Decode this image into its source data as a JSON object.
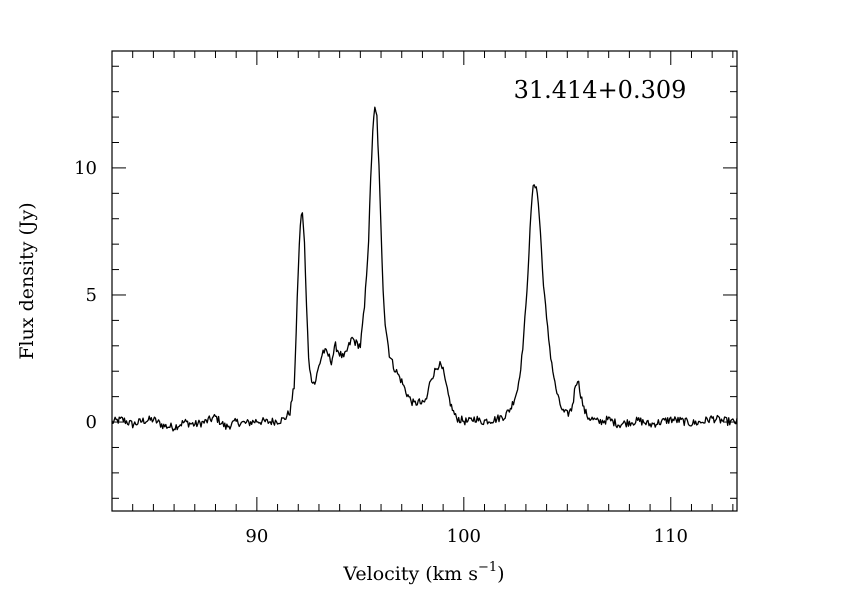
{
  "chart_data": {
    "type": "line",
    "title": "31.414+0.309",
    "xlabel": "Velocity (km s",
    "xlabel_sup": "−1",
    "xlabel_close": ")",
    "ylabel": "Flux density (Jy)",
    "xlim": [
      83.0,
      113.2
    ],
    "ylim": [
      -3.5,
      14.6
    ],
    "grid": false,
    "x_major_ticks": [
      90,
      100,
      110
    ],
    "x_minor_step": 1,
    "y_major_ticks": [
      0,
      5,
      10
    ],
    "y_minor_step": 1,
    "x_tick_labels": [
      "90",
      "100",
      "110"
    ],
    "y_tick_labels": [
      "0",
      "5",
      "10"
    ],
    "series": [
      {
        "color": "#000000",
        "x": [
          83.0,
          83.5,
          84.0,
          84.5,
          85.0,
          85.5,
          86.0,
          86.5,
          87.0,
          87.5,
          88.0,
          88.5,
          89.0,
          89.5,
          90.0,
          90.5,
          91.0,
          91.3,
          91.6,
          91.8,
          91.9,
          92.0,
          92.1,
          92.2,
          92.3,
          92.4,
          92.5,
          92.6,
          92.8,
          93.0,
          93.2,
          93.4,
          93.6,
          93.8,
          94.0,
          94.2,
          94.4,
          94.6,
          94.8,
          95.0,
          95.2,
          95.4,
          95.5,
          95.6,
          95.7,
          95.8,
          95.9,
          96.0,
          96.1,
          96.2,
          96.4,
          96.6,
          96.8,
          97.0,
          97.2,
          97.4,
          97.6,
          97.8,
          98.0,
          98.2,
          98.4,
          98.6,
          98.8,
          99.0,
          99.2,
          99.4,
          99.6,
          99.8,
          100.0,
          100.2,
          100.4,
          100.6,
          100.8,
          101.0,
          101.5,
          102.0,
          102.3,
          102.6,
          102.8,
          103.0,
          103.2,
          103.3,
          103.4,
          103.5,
          103.6,
          103.7,
          103.8,
          104.0,
          104.2,
          104.4,
          104.6,
          104.8,
          105.0,
          105.2,
          105.3,
          105.4,
          105.5,
          105.6,
          105.8,
          106.0,
          106.5,
          107.0,
          107.5,
          108.0,
          108.5,
          109.0,
          109.5,
          110.0,
          110.5,
          111.0,
          111.5,
          112.0,
          112.5,
          113.0
        ],
        "y": [
          0.0,
          0.1,
          -0.1,
          0.05,
          0.1,
          -0.15,
          -0.2,
          0.0,
          -0.1,
          0.0,
          0.2,
          -0.2,
          0.0,
          -0.05,
          0.05,
          0.0,
          0.05,
          0.1,
          0.4,
          1.4,
          3.5,
          6.0,
          7.8,
          8.3,
          7.0,
          4.5,
          2.6,
          1.8,
          1.5,
          2.2,
          2.8,
          2.7,
          2.4,
          3.0,
          2.7,
          2.5,
          2.9,
          3.3,
          3.1,
          3.0,
          4.5,
          7.2,
          9.5,
          11.5,
          12.3,
          12.0,
          10.0,
          7.5,
          5.3,
          3.9,
          2.7,
          2.2,
          1.9,
          1.6,
          1.2,
          0.9,
          0.7,
          0.8,
          0.7,
          0.9,
          1.7,
          2.0,
          2.3,
          2.0,
          1.2,
          0.6,
          0.2,
          0.1,
          0.05,
          0.0,
          0.1,
          0.15,
          0.0,
          0.05,
          0.1,
          0.25,
          0.6,
          1.3,
          2.5,
          4.5,
          7.5,
          8.9,
          9.4,
          9.3,
          8.6,
          7.5,
          6.0,
          4.0,
          2.6,
          1.5,
          0.8,
          0.4,
          0.3,
          0.5,
          0.9,
          1.5,
          1.7,
          1.3,
          0.5,
          0.2,
          0.0,
          0.1,
          -0.1,
          0.0,
          0.05,
          -0.1,
          0.0,
          0.1,
          0.05,
          -0.05,
          0.0,
          0.15,
          0.05,
          0.0
        ]
      }
    ]
  }
}
